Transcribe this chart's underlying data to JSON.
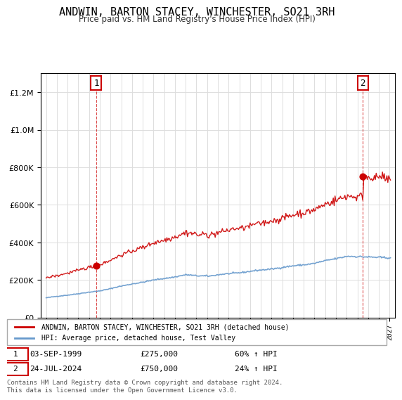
{
  "title": "ANDWIN, BARTON STACEY, WINCHESTER, SO21 3RH",
  "subtitle": "Price paid vs. HM Land Registry's House Price Index (HPI)",
  "legend_line1": "ANDWIN, BARTON STACEY, WINCHESTER, SO21 3RH (detached house)",
  "legend_line2": "HPI: Average price, detached house, Test Valley",
  "annotation1_label": "1",
  "annotation1_date": "03-SEP-1999",
  "annotation1_price": "£275,000",
  "annotation1_pct": "60% ↑ HPI",
  "annotation2_label": "2",
  "annotation2_date": "24-JUL-2024",
  "annotation2_price": "£750,000",
  "annotation2_pct": "24% ↑ HPI",
  "footer": "Contains HM Land Registry data © Crown copyright and database right 2024.\nThis data is licensed under the Open Government Licence v3.0.",
  "red_color": "#cc0000",
  "blue_color": "#6699cc",
  "background_color": "#ffffff",
  "grid_color": "#dddddd",
  "ylim": [
    0,
    1300000
  ],
  "yticks": [
    0,
    200000,
    400000,
    600000,
    800000,
    1000000,
    1200000
  ],
  "xlim_start": 1994.5,
  "xlim_end": 2027.5
}
